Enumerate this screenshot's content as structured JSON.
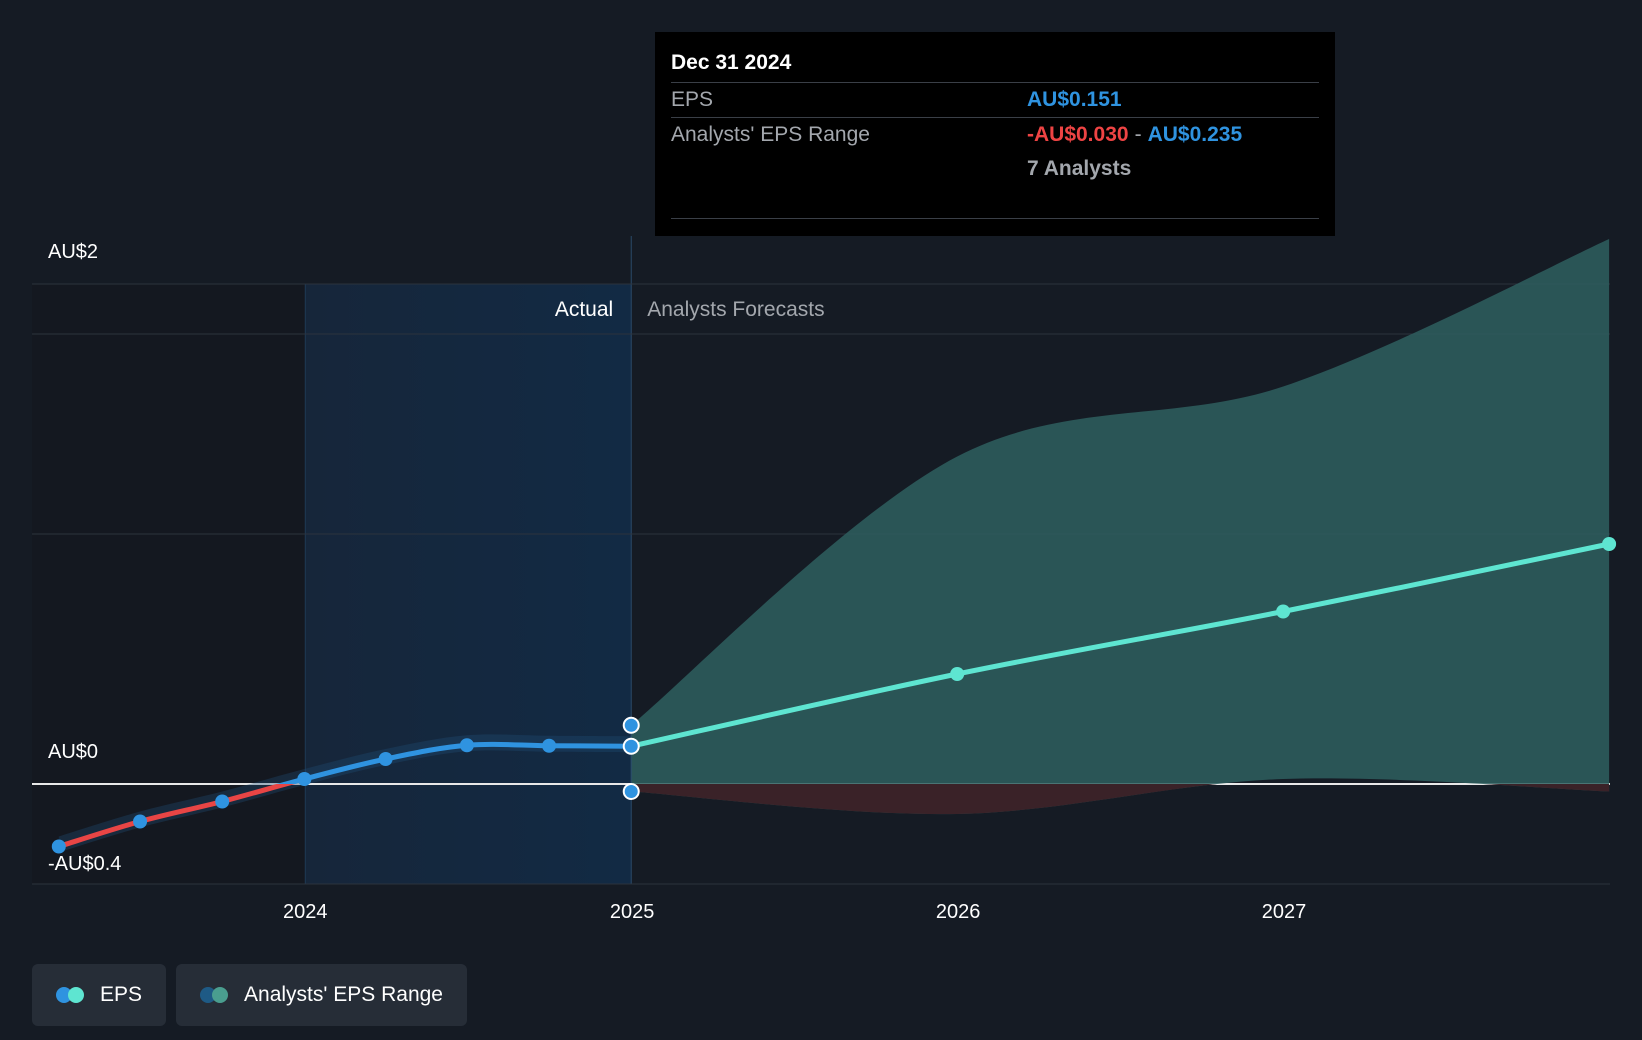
{
  "tooltip": {
    "date": "Dec 31 2024",
    "eps_label": "EPS",
    "eps_value": "AU$0.151",
    "range_label": "Analysts' EPS Range",
    "range_low": "-AU$0.030",
    "range_sep": "-",
    "range_high": "AU$0.235",
    "analysts": "7 Analysts"
  },
  "labels": {
    "actual": "Actual",
    "forecast": "Analysts Forecasts"
  },
  "legend": {
    "eps": "EPS",
    "range": "Analysts' EPS Range",
    "eps_colors": [
      "#2f93e0",
      "#5ee5d1"
    ],
    "range_colors": [
      "#1e5a85",
      "#4a9e8f"
    ]
  },
  "colors": {
    "actual": "#2f93e0",
    "negative": "#e84545",
    "forecast": "#5ee5d1",
    "range_fill": "#2e5f5f",
    "range_negative_fill": "#3a2228"
  },
  "chart_data": {
    "type": "line",
    "ylim": [
      -0.4,
      2
    ],
    "xlim": [
      "2023-03-01",
      "2028-01-01"
    ],
    "y_ticks": [
      {
        "value": 2,
        "label": "AU$2"
      },
      {
        "value": 0,
        "label": "AU$0"
      },
      {
        "value": -0.4,
        "label": "-AU$0.4"
      }
    ],
    "x_ticks": [
      {
        "date": "2024-01-01",
        "label": "2024"
      },
      {
        "date": "2025-01-01",
        "label": "2025"
      },
      {
        "date": "2026-01-01",
        "label": "2026"
      },
      {
        "date": "2027-01-01",
        "label": "2027"
      }
    ],
    "actual_region": [
      "2024-01-01",
      "2024-12-31"
    ],
    "series": [
      {
        "name": "EPS",
        "kind": "actual",
        "points": [
          {
            "date": "2023-03-31",
            "value": -0.25
          },
          {
            "date": "2023-06-30",
            "value": -0.15
          },
          {
            "date": "2023-09-30",
            "value": -0.07
          },
          {
            "date": "2023-12-31",
            "value": 0.02
          },
          {
            "date": "2024-03-31",
            "value": 0.1
          },
          {
            "date": "2024-06-30",
            "value": 0.155
          },
          {
            "date": "2024-09-30",
            "value": 0.153
          },
          {
            "date": "2024-12-31",
            "value": 0.151
          }
        ]
      },
      {
        "name": "EPS",
        "kind": "forecast",
        "points": [
          {
            "date": "2024-12-31",
            "value": 0.151
          },
          {
            "date": "2025-12-31",
            "value": 0.44
          },
          {
            "date": "2026-12-31",
            "value": 0.69
          },
          {
            "date": "2027-12-31",
            "value": 0.96
          }
        ]
      },
      {
        "name": "Analysts' EPS Range",
        "kind": "range",
        "points": [
          {
            "date": "2024-12-31",
            "low": -0.03,
            "high": 0.235
          },
          {
            "date": "2025-12-31",
            "low": -0.12,
            "high": 1.31
          },
          {
            "date": "2026-12-31",
            "low": 0.02,
            "high": 1.59
          },
          {
            "date": "2027-12-31",
            "low": -0.03,
            "high": 2.18
          }
        ]
      }
    ]
  }
}
